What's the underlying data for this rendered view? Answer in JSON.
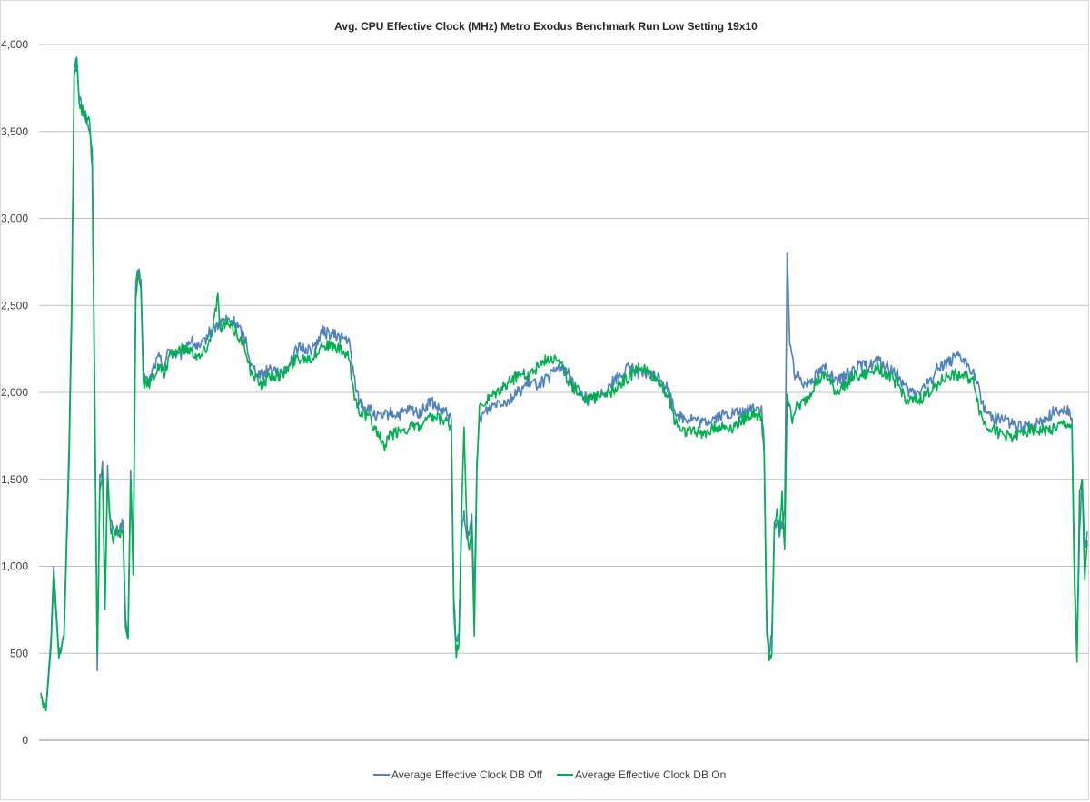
{
  "chart_data": {
    "type": "line",
    "title": "Avg. CPU Effective Clock (MHz) Metro Exodus Benchmark Run Low Setting 19x10",
    "xlabel": "",
    "ylabel": "",
    "ylim": [
      0,
      4000
    ],
    "yticks": [
      0,
      500,
      1000,
      1500,
      2000,
      2500,
      3000,
      3500,
      4000
    ],
    "ytick_labels": [
      "0",
      "500",
      "1,000",
      "1,500",
      "2,000",
      "2,500",
      "3,000",
      "3,500",
      "4,000"
    ],
    "grid": true,
    "legend_position": "bottom",
    "series": [
      {
        "name": "Average Effective Clock DB Off",
        "color": "#4f81bd",
        "keypoints": [
          [
            0,
            280
          ],
          [
            2,
            180
          ],
          [
            4,
            600
          ],
          [
            5,
            1000
          ],
          [
            7,
            500
          ],
          [
            9,
            600
          ],
          [
            11,
            1700
          ],
          [
            12,
            2500
          ],
          [
            13,
            3800
          ],
          [
            14,
            3900
          ],
          [
            15,
            3700
          ],
          [
            17,
            3600
          ],
          [
            19,
            3500
          ],
          [
            20,
            3400
          ],
          [
            21,
            2000
          ],
          [
            22,
            400
          ],
          [
            23,
            1500
          ],
          [
            24,
            1600
          ],
          [
            25,
            800
          ],
          [
            26,
            1550
          ],
          [
            27,
            1300
          ],
          [
            28,
            1200
          ],
          [
            30,
            1200
          ],
          [
            32,
            1250
          ],
          [
            33,
            700
          ],
          [
            34,
            600
          ],
          [
            35,
            1550
          ],
          [
            36,
            1000
          ],
          [
            37,
            2600
          ],
          [
            38,
            2700
          ],
          [
            39,
            2650
          ],
          [
            40,
            2100
          ],
          [
            42,
            2050
          ],
          [
            44,
            2150
          ],
          [
            46,
            2200
          ],
          [
            48,
            2150
          ],
          [
            50,
            2250
          ],
          [
            54,
            2200
          ],
          [
            58,
            2300
          ],
          [
            62,
            2250
          ],
          [
            66,
            2350
          ],
          [
            70,
            2400
          ],
          [
            72,
            2420
          ],
          [
            76,
            2400
          ],
          [
            80,
            2300
          ],
          [
            82,
            2150
          ],
          [
            86,
            2100
          ],
          [
            90,
            2150
          ],
          [
            94,
            2100
          ],
          [
            100,
            2250
          ],
          [
            106,
            2250
          ],
          [
            110,
            2350
          ],
          [
            116,
            2320
          ],
          [
            120,
            2300
          ],
          [
            122,
            2100
          ],
          [
            124,
            1950
          ],
          [
            128,
            1900
          ],
          [
            132,
            1850
          ],
          [
            136,
            1880
          ],
          [
            140,
            1870
          ],
          [
            144,
            1900
          ],
          [
            148,
            1880
          ],
          [
            152,
            1950
          ],
          [
            155,
            1900
          ],
          [
            158,
            1880
          ],
          [
            160,
            1850
          ],
          [
            161,
            800
          ],
          [
            162,
            550
          ],
          [
            163,
            600
          ],
          [
            164,
            1200
          ],
          [
            165,
            1300
          ],
          [
            166,
            1200
          ],
          [
            167,
            1150
          ],
          [
            168,
            1300
          ],
          [
            169,
            800
          ],
          [
            170,
            1600
          ],
          [
            171,
            1850
          ],
          [
            174,
            1900
          ],
          [
            178,
            1950
          ],
          [
            182,
            1950
          ],
          [
            186,
            2000
          ],
          [
            190,
            2050
          ],
          [
            194,
            2050
          ],
          [
            198,
            2080
          ],
          [
            202,
            2150
          ],
          [
            206,
            2100
          ],
          [
            210,
            2000
          ],
          [
            214,
            1950
          ],
          [
            218,
            1980
          ],
          [
            222,
            2050
          ],
          [
            226,
            2100
          ],
          [
            230,
            2150
          ],
          [
            234,
            2100
          ],
          [
            238,
            2100
          ],
          [
            242,
            2080
          ],
          [
            245,
            2000
          ],
          [
            247,
            1900
          ],
          [
            250,
            1850
          ],
          [
            254,
            1850
          ],
          [
            258,
            1820
          ],
          [
            262,
            1850
          ],
          [
            266,
            1870
          ],
          [
            270,
            1880
          ],
          [
            274,
            1880
          ],
          [
            278,
            1920
          ],
          [
            281,
            1900
          ],
          [
            282,
            1700
          ],
          [
            283,
            700
          ],
          [
            284,
            500
          ],
          [
            285,
            600
          ],
          [
            286,
            1200
          ],
          [
            287,
            1250
          ],
          [
            288,
            1200
          ],
          [
            289,
            1250
          ],
          [
            290,
            1300
          ],
          [
            291,
            2800
          ],
          [
            292,
            2300
          ],
          [
            293,
            2200
          ],
          [
            294,
            2100
          ],
          [
            298,
            2050
          ],
          [
            302,
            2100
          ],
          [
            306,
            2150
          ],
          [
            310,
            2050
          ],
          [
            314,
            2100
          ],
          [
            318,
            2150
          ],
          [
            322,
            2150
          ],
          [
            326,
            2180
          ],
          [
            330,
            2150
          ],
          [
            334,
            2100
          ],
          [
            338,
            2000
          ],
          [
            342,
            2000
          ],
          [
            346,
            2050
          ],
          [
            350,
            2150
          ],
          [
            354,
            2180
          ],
          [
            358,
            2200
          ],
          [
            362,
            2150
          ],
          [
            364,
            2100
          ],
          [
            366,
            2000
          ],
          [
            368,
            1900
          ],
          [
            372,
            1850
          ],
          [
            376,
            1850
          ],
          [
            380,
            1800
          ],
          [
            384,
            1800
          ],
          [
            388,
            1820
          ],
          [
            392,
            1850
          ],
          [
            396,
            1900
          ],
          [
            400,
            1900
          ],
          [
            402,
            1850
          ],
          [
            403,
            1000
          ],
          [
            404,
            500
          ],
          [
            405,
            1200
          ],
          [
            406,
            1500
          ],
          [
            407,
            1100
          ],
          [
            408,
            1200
          ]
        ]
      },
      {
        "name": "Average Effective Clock DB On",
        "color": "#00b050",
        "keypoints": [
          [
            0,
            250
          ],
          [
            2,
            170
          ],
          [
            4,
            550
          ],
          [
            5,
            950
          ],
          [
            7,
            480
          ],
          [
            9,
            580
          ],
          [
            11,
            1600
          ],
          [
            12,
            2400
          ],
          [
            13,
            3850
          ],
          [
            14,
            3900
          ],
          [
            15,
            3650
          ],
          [
            17,
            3600
          ],
          [
            19,
            3550
          ],
          [
            20,
            3300
          ],
          [
            21,
            1900
          ],
          [
            22,
            500
          ],
          [
            23,
            1450
          ],
          [
            24,
            1550
          ],
          [
            25,
            750
          ],
          [
            26,
            1500
          ],
          [
            27,
            1250
          ],
          [
            28,
            1150
          ],
          [
            30,
            1200
          ],
          [
            32,
            1200
          ],
          [
            33,
            650
          ],
          [
            34,
            580
          ],
          [
            35,
            1500
          ],
          [
            36,
            950
          ],
          [
            37,
            2550
          ],
          [
            38,
            2700
          ],
          [
            39,
            2600
          ],
          [
            40,
            2050
          ],
          [
            42,
            2050
          ],
          [
            44,
            2100
          ],
          [
            46,
            2150
          ],
          [
            48,
            2100
          ],
          [
            50,
            2200
          ],
          [
            54,
            2250
          ],
          [
            58,
            2250
          ],
          [
            62,
            2200
          ],
          [
            66,
            2300
          ],
          [
            69,
            2550
          ],
          [
            70,
            2350
          ],
          [
            72,
            2400
          ],
          [
            76,
            2350
          ],
          [
            80,
            2250
          ],
          [
            82,
            2100
          ],
          [
            86,
            2050
          ],
          [
            90,
            2100
          ],
          [
            94,
            2100
          ],
          [
            100,
            2200
          ],
          [
            106,
            2200
          ],
          [
            110,
            2280
          ],
          [
            116,
            2250
          ],
          [
            120,
            2200
          ],
          [
            122,
            2000
          ],
          [
            124,
            1900
          ],
          [
            128,
            1850
          ],
          [
            132,
            1750
          ],
          [
            134,
            1680
          ],
          [
            136,
            1750
          ],
          [
            140,
            1780
          ],
          [
            144,
            1800
          ],
          [
            148,
            1800
          ],
          [
            152,
            1850
          ],
          [
            155,
            1850
          ],
          [
            158,
            1830
          ],
          [
            160,
            1800
          ],
          [
            161,
            750
          ],
          [
            162,
            500
          ],
          [
            163,
            550
          ],
          [
            164,
            1300
          ],
          [
            165,
            1800
          ],
          [
            166,
            1250
          ],
          [
            167,
            1100
          ],
          [
            168,
            1250
          ],
          [
            169,
            600
          ],
          [
            170,
            1550
          ],
          [
            171,
            1900
          ],
          [
            174,
            1950
          ],
          [
            178,
            2000
          ],
          [
            182,
            2050
          ],
          [
            186,
            2100
          ],
          [
            190,
            2100
          ],
          [
            194,
            2150
          ],
          [
            198,
            2200
          ],
          [
            202,
            2200
          ],
          [
            206,
            2050
          ],
          [
            210,
            2000
          ],
          [
            214,
            1950
          ],
          [
            218,
            2000
          ],
          [
            222,
            2000
          ],
          [
            226,
            2050
          ],
          [
            230,
            2100
          ],
          [
            234,
            2150
          ],
          [
            238,
            2100
          ],
          [
            242,
            2050
          ],
          [
            245,
            1950
          ],
          [
            247,
            1850
          ],
          [
            250,
            1780
          ],
          [
            254,
            1780
          ],
          [
            258,
            1760
          ],
          [
            262,
            1800
          ],
          [
            266,
            1800
          ],
          [
            270,
            1800
          ],
          [
            274,
            1850
          ],
          [
            278,
            1880
          ],
          [
            281,
            1850
          ],
          [
            282,
            1650
          ],
          [
            283,
            600
          ],
          [
            284,
            450
          ],
          [
            285,
            500
          ],
          [
            286,
            1250
          ],
          [
            287,
            1300
          ],
          [
            288,
            1200
          ],
          [
            289,
            1400
          ],
          [
            290,
            1100
          ],
          [
            291,
            2000
          ],
          [
            292,
            1900
          ],
          [
            293,
            1850
          ],
          [
            294,
            1900
          ],
          [
            298,
            1950
          ],
          [
            302,
            2050
          ],
          [
            306,
            2100
          ],
          [
            310,
            2000
          ],
          [
            314,
            2050
          ],
          [
            318,
            2100
          ],
          [
            322,
            2100
          ],
          [
            326,
            2150
          ],
          [
            330,
            2100
          ],
          [
            334,
            2050
          ],
          [
            338,
            1950
          ],
          [
            342,
            1950
          ],
          [
            346,
            2000
          ],
          [
            350,
            2050
          ],
          [
            354,
            2100
          ],
          [
            358,
            2100
          ],
          [
            362,
            2080
          ],
          [
            364,
            2050
          ],
          [
            366,
            1900
          ],
          [
            368,
            1820
          ],
          [
            372,
            1780
          ],
          [
            376,
            1750
          ],
          [
            380,
            1750
          ],
          [
            384,
            1780
          ],
          [
            388,
            1780
          ],
          [
            392,
            1780
          ],
          [
            396,
            1800
          ],
          [
            400,
            1820
          ],
          [
            402,
            1800
          ],
          [
            403,
            900
          ],
          [
            404,
            450
          ],
          [
            405,
            1400
          ],
          [
            406,
            1500
          ],
          [
            407,
            900
          ],
          [
            408,
            1150
          ]
        ]
      }
    ]
  }
}
